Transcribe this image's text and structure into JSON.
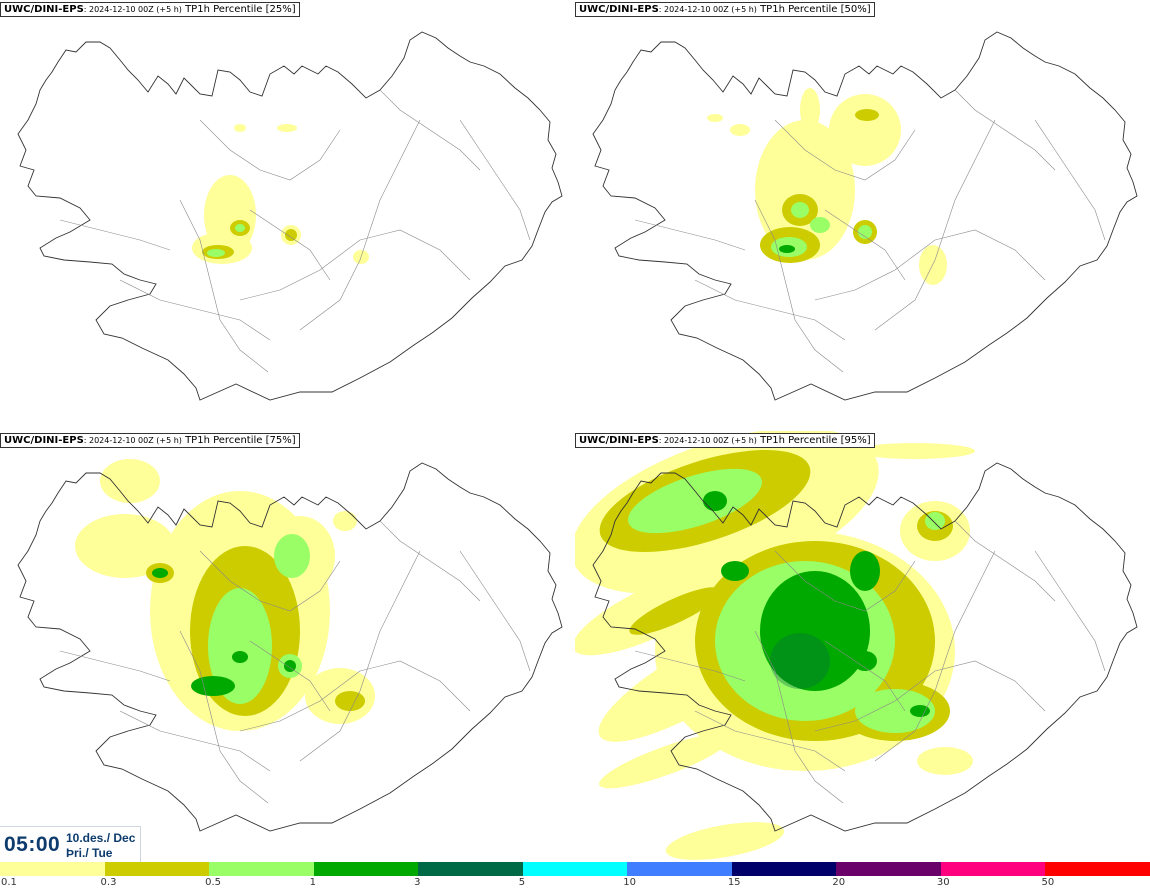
{
  "panels": [
    {
      "model": "UWC/DINI-EPS",
      "run": ": 2024-12-10 00Z (+5 h)",
      "field": " TP1h Percentile [25%]"
    },
    {
      "model": "UWC/DINI-EPS",
      "run": ": 2024-12-10 00Z (+5 h)",
      "field": " TP1h Percentile [50%]"
    },
    {
      "model": "UWC/DINI-EPS",
      "run": ": 2024-12-10 00Z (+5 h)",
      "field": " TP1h Percentile [75%]"
    },
    {
      "model": "UWC/DINI-EPS",
      "run": ": 2024-12-10 00Z (+5 h)",
      "field": " TP1h Percentile [95%]"
    }
  ],
  "valid_time": {
    "time": "05:00",
    "date": "10.des./ Dec",
    "day": "Þri./ Tue"
  },
  "legend": {
    "ticks": [
      "0.1",
      "0.3",
      "0.5",
      "1",
      "3",
      "5",
      "10",
      "15",
      "20",
      "30",
      "50"
    ],
    "colors": [
      "#ffff9a",
      "#cccc00",
      "#9aff66",
      "#00a900",
      "#006a46",
      "#00ffff",
      "#3f7fff",
      "#00006a",
      "#6a006a",
      "#ff007f",
      "#ff0000"
    ]
  }
}
